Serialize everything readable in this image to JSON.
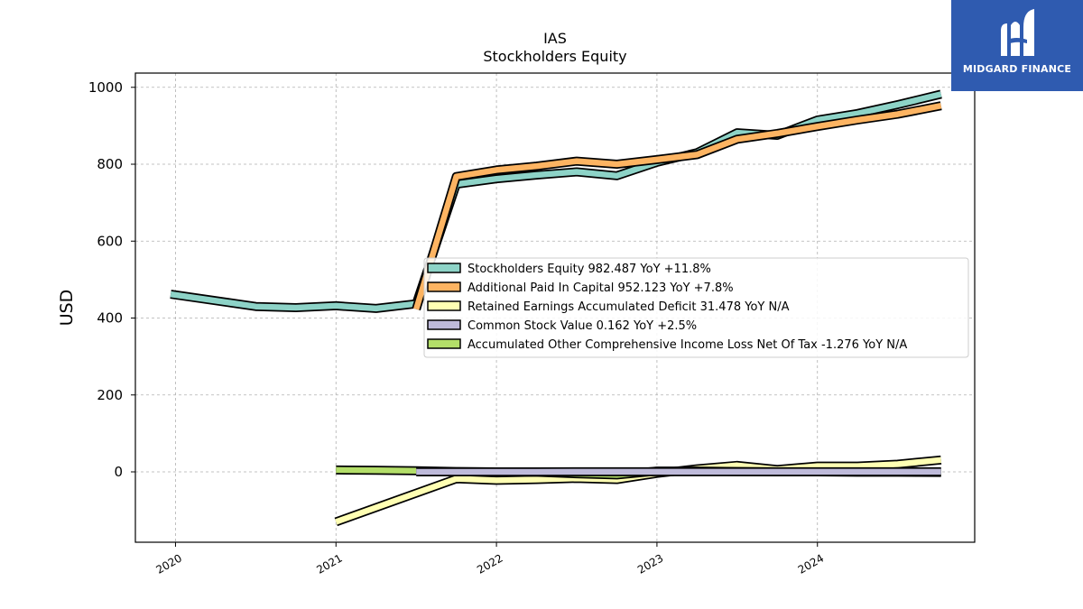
{
  "chart_data": {
    "type": "line",
    "title": "IAS",
    "subtitle": "Stockholders  Equity",
    "ylabel": "USD",
    "xlabel": "",
    "xlim": [
      2019.75,
      2024.98
    ],
    "ylim": [
      -183,
      1037
    ],
    "yticks": [
      0,
      200,
      400,
      600,
      800,
      1000
    ],
    "xticks": [
      2020,
      2021,
      2022,
      2023,
      2024
    ],
    "grid": true,
    "legend_position": "center-right",
    "series": [
      {
        "name": "Stockholders Equity  982.487 YoY +11.8%",
        "color": "#8dd3c7",
        "x": [
          2019.97,
          2020.5,
          2020.75,
          2021.0,
          2021.25,
          2021.5,
          2021.75,
          2022.0,
          2022.25,
          2022.5,
          2022.75,
          2023.0,
          2023.25,
          2023.5,
          2023.75,
          2024.0,
          2024.25,
          2024.5,
          2024.77
        ],
        "y": [
          462,
          430,
          427,
          432,
          425,
          437,
          748,
          762,
          772,
          780,
          770,
          805,
          830,
          882,
          875,
          915,
          932,
          955,
          982
        ]
      },
      {
        "name": "Additional Paid In Capital  952.123 YoY +7.8%",
        "color": "#fdb462",
        "x": [
          2021.5,
          2021.75,
          2022.0,
          2022.25,
          2022.5,
          2022.75,
          2023.0,
          2023.25,
          2023.5,
          2023.75,
          2024.0,
          2024.25,
          2024.5,
          2024.77
        ],
        "y": [
          423,
          768,
          785,
          795,
          808,
          800,
          812,
          825,
          865,
          880,
          898,
          915,
          930,
          952
        ]
      },
      {
        "name": "Retained Earnings Accumulated Deficit  31.478 YoY N/A",
        "color": "#ffffb3",
        "x": [
          2021.0,
          2021.75,
          2022.0,
          2022.25,
          2022.5,
          2022.75,
          2023.0,
          2023.25,
          2023.5,
          2023.75,
          2024.0,
          2024.25,
          2024.5,
          2024.77
        ],
        "y": [
          -130,
          -18,
          -22,
          -20,
          -17,
          -20,
          -4,
          8,
          17,
          6,
          15,
          15,
          20,
          31
        ]
      },
      {
        "name": "Common Stock Value  0.162 YoY +2.5%",
        "color": "#bebada",
        "x": [
          2021.5,
          2021.75,
          2022.0,
          2022.25,
          2022.5,
          2022.75,
          2023.0,
          2023.25,
          2023.5,
          2023.75,
          2024.0,
          2024.25,
          2024.5,
          2024.77
        ],
        "y": [
          0.1,
          0.1,
          0.1,
          0.1,
          0.12,
          0.12,
          0.13,
          0.14,
          0.15,
          0.15,
          0.16,
          0.16,
          0.16,
          0.162
        ]
      },
      {
        "name": "Accumulated Other Comprehensive Income Loss Net Of Tax  -1.276 YoY N/A",
        "color": "#b3de69",
        "x": [
          2021.0,
          2021.25,
          2021.5,
          2021.75,
          2022.0,
          2022.25,
          2022.5,
          2022.75,
          2023.0,
          2023.25,
          2023.5,
          2023.75,
          2024.0,
          2024.25,
          2024.5,
          2024.77
        ],
        "y": [
          5,
          4,
          3,
          1,
          0,
          -1,
          -5,
          -8,
          2,
          2,
          1,
          0,
          0,
          -1,
          -1,
          -1.3
        ]
      }
    ]
  },
  "logo": {
    "text": "MIDGARD FINANCE",
    "bg_color": "#2f5bb0"
  }
}
